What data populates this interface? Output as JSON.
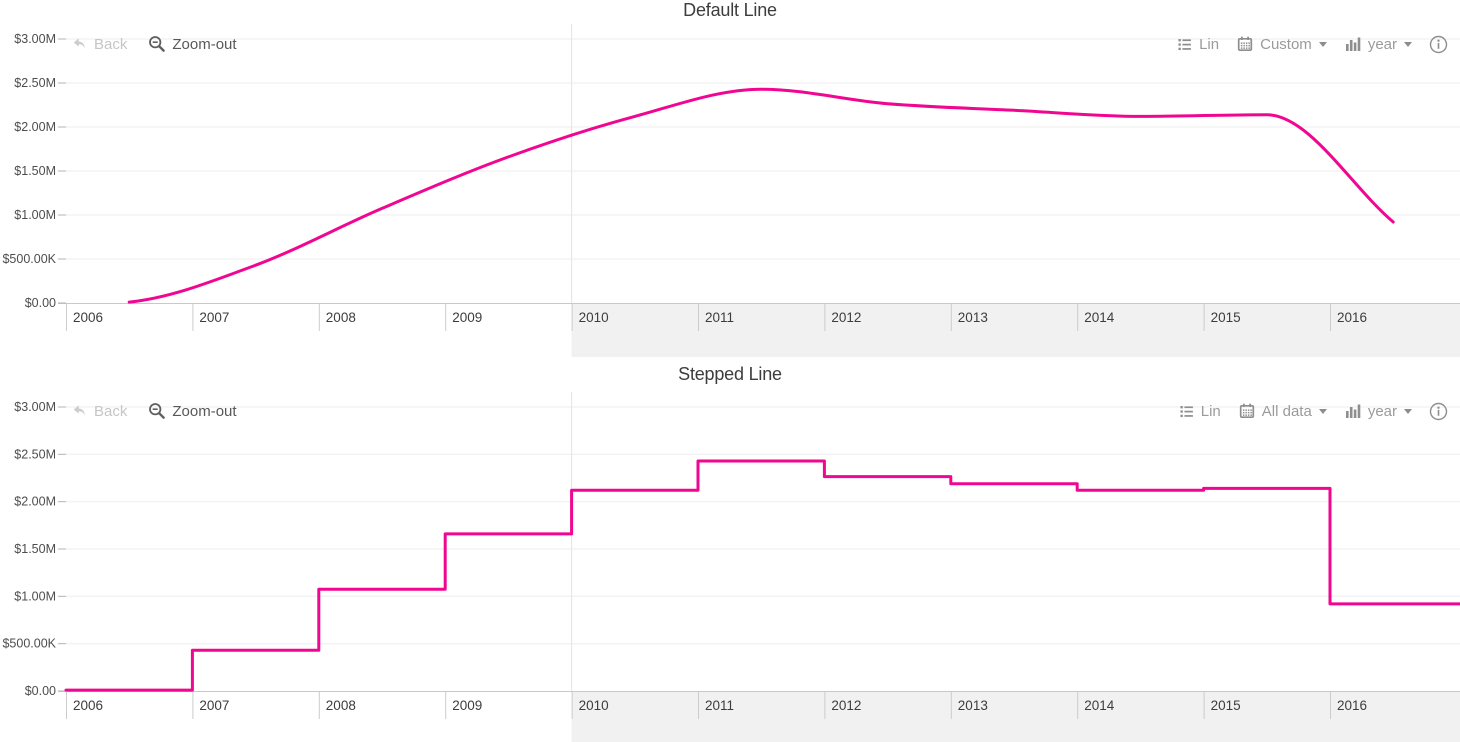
{
  "accent_color": "#f10691",
  "toolbar": {
    "back_label": "Back",
    "zoom_out_label": "Zoom-out",
    "icons": [
      "back-arrow-icon",
      "magnifier-minus-icon",
      "list-icon",
      "calendar-icon",
      "bar-chart-icon",
      "chevron-down-icon",
      "info-icon"
    ]
  },
  "charts": [
    {
      "title": "Default Line",
      "toolbar": {
        "scale_label": "Lin",
        "range_label": "Custom",
        "unit_label": "year"
      },
      "chart_data": {
        "type": "line",
        "interpolation": "smooth",
        "x": [
          2006,
          2007,
          2008,
          2009,
          2010,
          2011,
          2012,
          2013,
          2014,
          2015,
          2016
        ],
        "values": [
          10000,
          430000,
          1075000,
          1660000,
          2120000,
          2430000,
          2265000,
          2190000,
          2120000,
          2140000,
          920000
        ],
        "title": "Default Line",
        "ylim": [
          0,
          3000000
        ],
        "y_tick_labels": [
          "$0.00",
          "$500.00K",
          "$1.00M",
          "$1.50M",
          "$2.00M",
          "$2.50M",
          "$3.00M"
        ],
        "x_tick_labels": [
          "2006",
          "2007",
          "2008",
          "2009",
          "2010",
          "2011",
          "2012",
          "2013",
          "2014",
          "2015",
          "2016"
        ],
        "grid": true,
        "legend": "none",
        "line_color": "#f10691",
        "highlight_band_start": "2010"
      }
    },
    {
      "title": "Stepped Line",
      "toolbar": {
        "scale_label": "Lin",
        "range_label": "All data",
        "unit_label": "year"
      },
      "chart_data": {
        "type": "line",
        "interpolation": "step",
        "x": [
          2006,
          2007,
          2008,
          2009,
          2010,
          2011,
          2012,
          2013,
          2014,
          2015,
          2016
        ],
        "values": [
          10000,
          430000,
          1075000,
          1660000,
          2120000,
          2430000,
          2265000,
          2190000,
          2120000,
          2140000,
          920000
        ],
        "title": "Stepped Line",
        "ylim": [
          0,
          3000000
        ],
        "y_tick_labels": [
          "$0.00",
          "$500.00K",
          "$1.00M",
          "$1.50M",
          "$2.00M",
          "$2.50M",
          "$3.00M"
        ],
        "x_tick_labels": [
          "2006",
          "2007",
          "2008",
          "2009",
          "2010",
          "2011",
          "2012",
          "2013",
          "2014",
          "2015",
          "2016"
        ],
        "grid": true,
        "legend": "none",
        "line_color": "#f10691",
        "highlight_band_start": "2010"
      }
    }
  ]
}
